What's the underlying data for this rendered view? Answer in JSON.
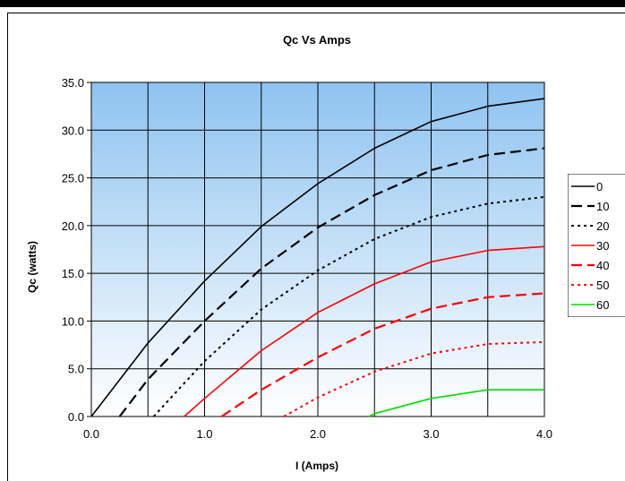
{
  "chart_data": {
    "type": "line",
    "title": "Qc Vs Amps",
    "xlabel": "I (Amps)",
    "ylabel": "Qc (watts)",
    "xlim": [
      0,
      4
    ],
    "ylim": [
      0,
      35
    ],
    "x_ticks": [
      "0.0",
      "1.0",
      "2.0",
      "3.0",
      "4.0"
    ],
    "y_ticks": [
      "0.0",
      "5.0",
      "10.0",
      "15.0",
      "20.0",
      "25.0",
      "30.0",
      "35.0"
    ],
    "grid": true,
    "legend_position": "right",
    "series": [
      {
        "name": "0",
        "color": "#000000",
        "dash": "solid",
        "width": 1.6,
        "x": [
          0,
          0.5,
          1.0,
          1.5,
          2.0,
          2.5,
          3.0,
          3.5,
          4.0
        ],
        "y": [
          0,
          7.7,
          14.2,
          19.9,
          24.4,
          28.1,
          30.9,
          32.5,
          33.3
        ]
      },
      {
        "name": "10",
        "color": "#000000",
        "dash": "long",
        "width": 2.2,
        "x": [
          0.25,
          0.5,
          1.0,
          1.5,
          2.0,
          2.5,
          3.0,
          3.5,
          4.0
        ],
        "y": [
          0,
          3.9,
          10.0,
          15.5,
          19.8,
          23.2,
          25.8,
          27.4,
          28.1
        ]
      },
      {
        "name": "20",
        "color": "#000000",
        "dash": "dot",
        "width": 2,
        "x": [
          0.55,
          1.0,
          1.5,
          2.0,
          2.5,
          3.0,
          3.5,
          4.0
        ],
        "y": [
          0,
          5.8,
          11.2,
          15.3,
          18.6,
          20.9,
          22.3,
          23.0
        ]
      },
      {
        "name": "30",
        "color": "#ff0000",
        "dash": "solid",
        "width": 1.6,
        "x": [
          0.82,
          1.0,
          1.5,
          2.0,
          2.5,
          3.0,
          3.5,
          4.0
        ],
        "y": [
          0,
          1.9,
          6.9,
          10.9,
          13.9,
          16.2,
          17.4,
          17.8
        ]
      },
      {
        "name": "40",
        "color": "#ff0000",
        "dash": "long",
        "width": 2.2,
        "x": [
          1.15,
          1.5,
          2.0,
          2.5,
          3.0,
          3.5,
          4.0
        ],
        "y": [
          0,
          2.8,
          6.2,
          9.2,
          11.3,
          12.5,
          12.9
        ]
      },
      {
        "name": "50",
        "color": "#ff0000",
        "dash": "dot",
        "width": 2,
        "x": [
          1.7,
          2.0,
          2.5,
          3.0,
          3.5,
          4.0
        ],
        "y": [
          0,
          2.0,
          4.7,
          6.6,
          7.6,
          7.8
        ]
      },
      {
        "name": "60",
        "color": "#00dd00",
        "dash": "solid",
        "width": 1.6,
        "x": [
          2.45,
          2.5,
          3.0,
          3.5,
          4.0
        ],
        "y": [
          0,
          0.3,
          1.9,
          2.8,
          2.8
        ]
      }
    ]
  }
}
